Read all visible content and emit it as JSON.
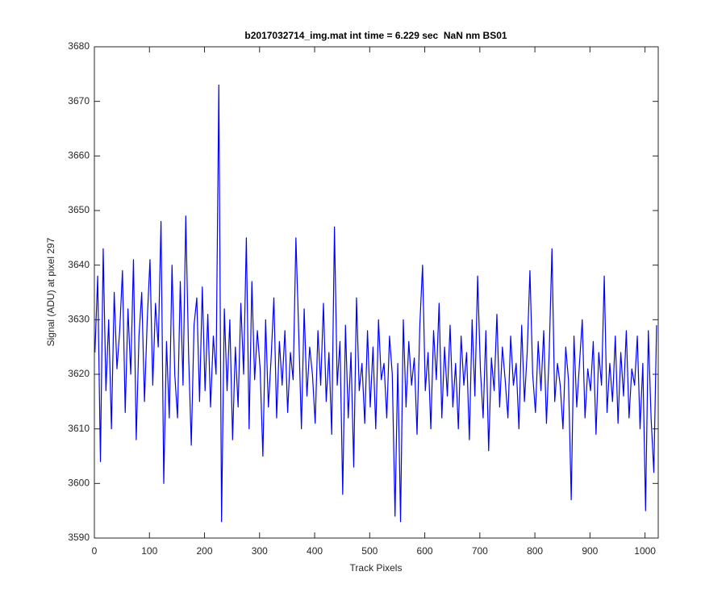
{
  "chart_data": {
    "type": "line",
    "title": "b2017032714_img.mat int time = 6.229 sec  NaN nm BS01",
    "x_label": "Track Pixels",
    "y_label": "Signal (ADU) at pixel 297",
    "color": "#0000ff",
    "grid": false,
    "xlim": [
      0,
      1024
    ],
    "ylim": [
      3590,
      3680
    ],
    "xticks": [
      0,
      100,
      200,
      300,
      400,
      500,
      600,
      700,
      800,
      900,
      1000
    ],
    "yticks": [
      3590,
      3600,
      3610,
      3620,
      3630,
      3640,
      3650,
      3660,
      3670,
      3680
    ],
    "x": [
      1,
      6,
      11,
      16,
      21,
      26,
      31,
      36,
      41,
      46,
      51,
      56,
      61,
      66,
      71,
      76,
      81,
      86,
      91,
      96,
      101,
      106,
      111,
      116,
      121,
      126,
      131,
      136,
      141,
      146,
      151,
      156,
      161,
      166,
      171,
      176,
      181,
      186,
      191,
      196,
      201,
      206,
      211,
      216,
      221,
      226,
      231,
      236,
      241,
      246,
      251,
      256,
      261,
      266,
      271,
      276,
      281,
      286,
      291,
      296,
      301,
      306,
      311,
      316,
      321,
      326,
      331,
      336,
      341,
      346,
      351,
      356,
      361,
      366,
      371,
      376,
      381,
      386,
      391,
      396,
      401,
      406,
      411,
      416,
      421,
      426,
      431,
      436,
      441,
      446,
      451,
      456,
      461,
      466,
      471,
      476,
      481,
      486,
      491,
      496,
      501,
      506,
      511,
      516,
      521,
      526,
      531,
      536,
      541,
      546,
      551,
      556,
      561,
      566,
      571,
      576,
      581,
      586,
      591,
      596,
      601,
      606,
      611,
      616,
      621,
      626,
      631,
      636,
      641,
      646,
      651,
      656,
      661,
      666,
      671,
      676,
      681,
      686,
      691,
      696,
      701,
      706,
      711,
      716,
      721,
      726,
      731,
      736,
      741,
      746,
      751,
      756,
      761,
      766,
      771,
      776,
      781,
      786,
      791,
      796,
      801,
      806,
      811,
      816,
      821,
      826,
      831,
      836,
      841,
      846,
      851,
      856,
      861,
      866,
      871,
      876,
      881,
      886,
      891,
      896,
      901,
      906,
      911,
      916,
      921,
      926,
      931,
      936,
      941,
      946,
      951,
      956,
      961,
      966,
      971,
      976,
      981,
      986,
      991,
      996,
      1001,
      1006,
      1011,
      1016,
      1021
    ],
    "values": [
      3624,
      3638,
      3604,
      3643,
      3617,
      3630,
      3610,
      3635,
      3621,
      3628,
      3639,
      3613,
      3632,
      3620,
      3641,
      3608,
      3627,
      3635,
      3615,
      3630,
      3641,
      3618,
      3633,
      3625,
      3648,
      3600,
      3626,
      3612,
      3640,
      3620,
      3612,
      3637,
      3618,
      3649,
      3624,
      3607,
      3629,
      3634,
      3615,
      3636,
      3617,
      3631,
      3614,
      3627,
      3620,
      3673,
      3593,
      3632,
      3617,
      3630,
      3608,
      3625,
      3614,
      3633,
      3620,
      3645,
      3610,
      3637,
      3619,
      3628,
      3621,
      3605,
      3630,
      3614,
      3623,
      3634,
      3612,
      3626,
      3618,
      3628,
      3613,
      3624,
      3619,
      3645,
      3628,
      3610,
      3632,
      3616,
      3625,
      3620,
      3611,
      3628,
      3618,
      3633,
      3615,
      3624,
      3609,
      3647,
      3618,
      3626,
      3598,
      3629,
      3612,
      3624,
      3603,
      3634,
      3617,
      3622,
      3611,
      3628,
      3614,
      3625,
      3610,
      3630,
      3619,
      3622,
      3612,
      3627,
      3620,
      3594,
      3622,
      3593,
      3630,
      3614,
      3626,
      3618,
      3623,
      3609,
      3629,
      3640,
      3617,
      3624,
      3610,
      3628,
      3619,
      3633,
      3612,
      3625,
      3616,
      3629,
      3614,
      3622,
      3610,
      3627,
      3618,
      3624,
      3608,
      3630,
      3616,
      3638,
      3621,
      3612,
      3628,
      3606,
      3623,
      3617,
      3631,
      3614,
      3625,
      3619,
      3612,
      3627,
      3618,
      3622,
      3610,
      3629,
      3615,
      3624,
      3639,
      3620,
      3613,
      3626,
      3617,
      3628,
      3611,
      3624,
      3643,
      3615,
      3622,
      3618,
      3610,
      3625,
      3619,
      3597,
      3627,
      3614,
      3622,
      3630,
      3612,
      3621,
      3617,
      3626,
      3609,
      3624,
      3618,
      3638,
      3613,
      3622,
      3615,
      3627,
      3611,
      3624,
      3616,
      3628,
      3612,
      3621,
      3618,
      3627,
      3610,
      3622,
      3595,
      3628,
      3612,
      3602,
      3629
    ]
  }
}
